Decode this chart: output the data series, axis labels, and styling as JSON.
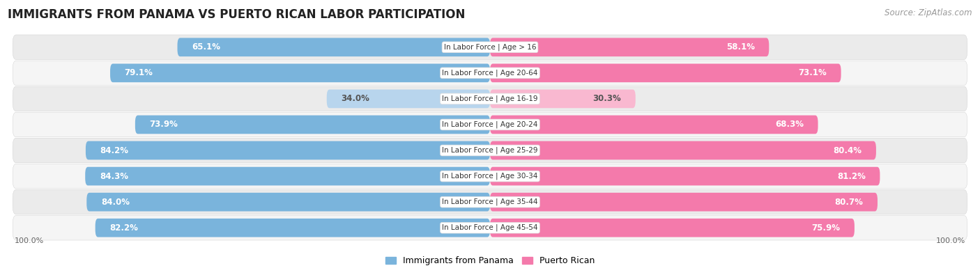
{
  "title": "IMMIGRANTS FROM PANAMA VS PUERTO RICAN LABOR PARTICIPATION",
  "source": "Source: ZipAtlas.com",
  "categories": [
    "In Labor Force | Age > 16",
    "In Labor Force | Age 20-64",
    "In Labor Force | Age 16-19",
    "In Labor Force | Age 20-24",
    "In Labor Force | Age 25-29",
    "In Labor Force | Age 30-34",
    "In Labor Force | Age 35-44",
    "In Labor Force | Age 45-54"
  ],
  "panama_values": [
    65.1,
    79.1,
    34.0,
    73.9,
    84.2,
    84.3,
    84.0,
    82.2
  ],
  "puerto_rican_values": [
    58.1,
    73.1,
    30.3,
    68.3,
    80.4,
    81.2,
    80.7,
    75.9
  ],
  "panama_color": "#7ab4dc",
  "panama_color_light": "#b8d5ed",
  "puerto_rican_color": "#f47aab",
  "puerto_rican_color_light": "#f9b8d0",
  "label_color_dark": "#555555",
  "label_color_white": "#ffffff",
  "row_bg_odd": "#ebebeb",
  "row_bg_even": "#f5f5f5",
  "bg_color": "#ffffff",
  "title_fontsize": 12,
  "source_fontsize": 8.5,
  "bar_label_fontsize": 8.5,
  "category_fontsize": 7.5,
  "legend_fontsize": 9,
  "axis_label_fontsize": 8
}
